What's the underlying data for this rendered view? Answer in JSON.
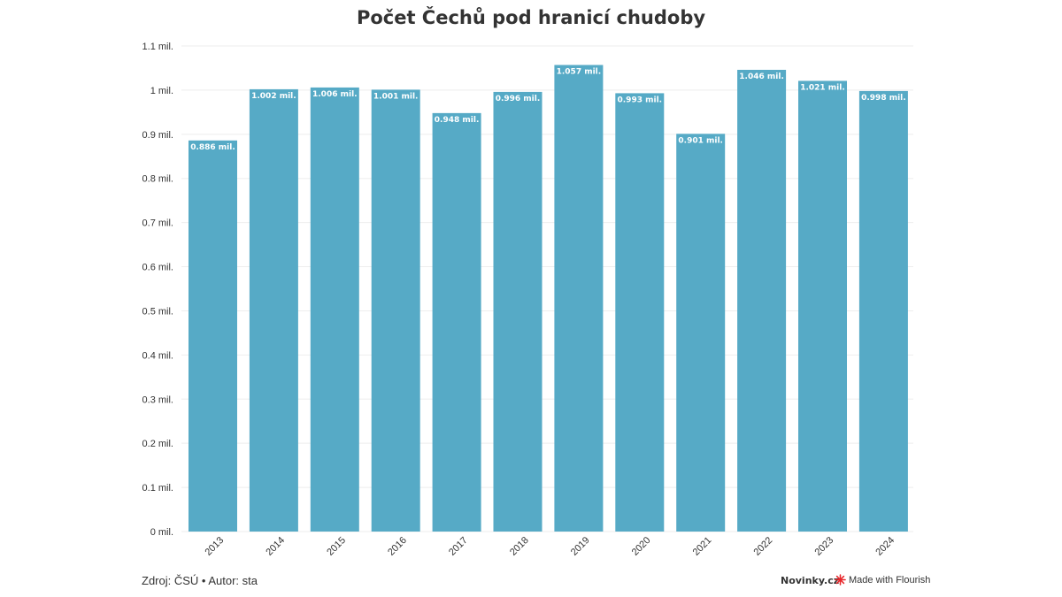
{
  "title": "Počet Čechů pod hranicí chudoby",
  "footer": {
    "source": "Zdroj: ČSÚ • Autor: sta",
    "brand": "Novinky.cz",
    "made_with": "Made with Flourish"
  },
  "colors": {
    "bar": "#56aac6",
    "grid": "#eeeeee",
    "text": "#333333",
    "flourish_icon": "#e8262a"
  },
  "chart_data": {
    "type": "bar",
    "title": "Počet Čechů pod hranicí chudoby",
    "xlabel": "",
    "ylabel": "",
    "ylim": [
      0,
      1.1
    ],
    "y_ticks": [
      0,
      0.1,
      0.2,
      0.3,
      0.4,
      0.5,
      0.6,
      0.7,
      0.8,
      0.9,
      1,
      1.1
    ],
    "y_tick_labels": [
      "0 mil.",
      "0.1 mil.",
      "0.2 mil.",
      "0.3 mil.",
      "0.4 mil.",
      "0.5 mil.",
      "0.6 mil.",
      "0.7 mil.",
      "0.8 mil.",
      "0.9 mil.",
      "1 mil.",
      "1.1 mil."
    ],
    "grid": true,
    "categories": [
      "2013",
      "2014",
      "2015",
      "2016",
      "2017",
      "2018",
      "2019",
      "2020",
      "2021",
      "2022",
      "2023",
      "2024"
    ],
    "values": [
      0.886,
      1.002,
      1.006,
      1.001,
      0.948,
      0.996,
      1.057,
      0.993,
      0.901,
      1.046,
      1.021,
      0.998
    ],
    "data_labels": [
      "0.886 mil.",
      "1.002 mil.",
      "1.006 mil.",
      "1.001 mil.",
      "0.948 mil.",
      "0.996 mil.",
      "1.057 mil.",
      "0.993 mil.",
      "0.901 mil.",
      "1.046 mil.",
      "1.021 mil.",
      "0.998 mil."
    ]
  }
}
